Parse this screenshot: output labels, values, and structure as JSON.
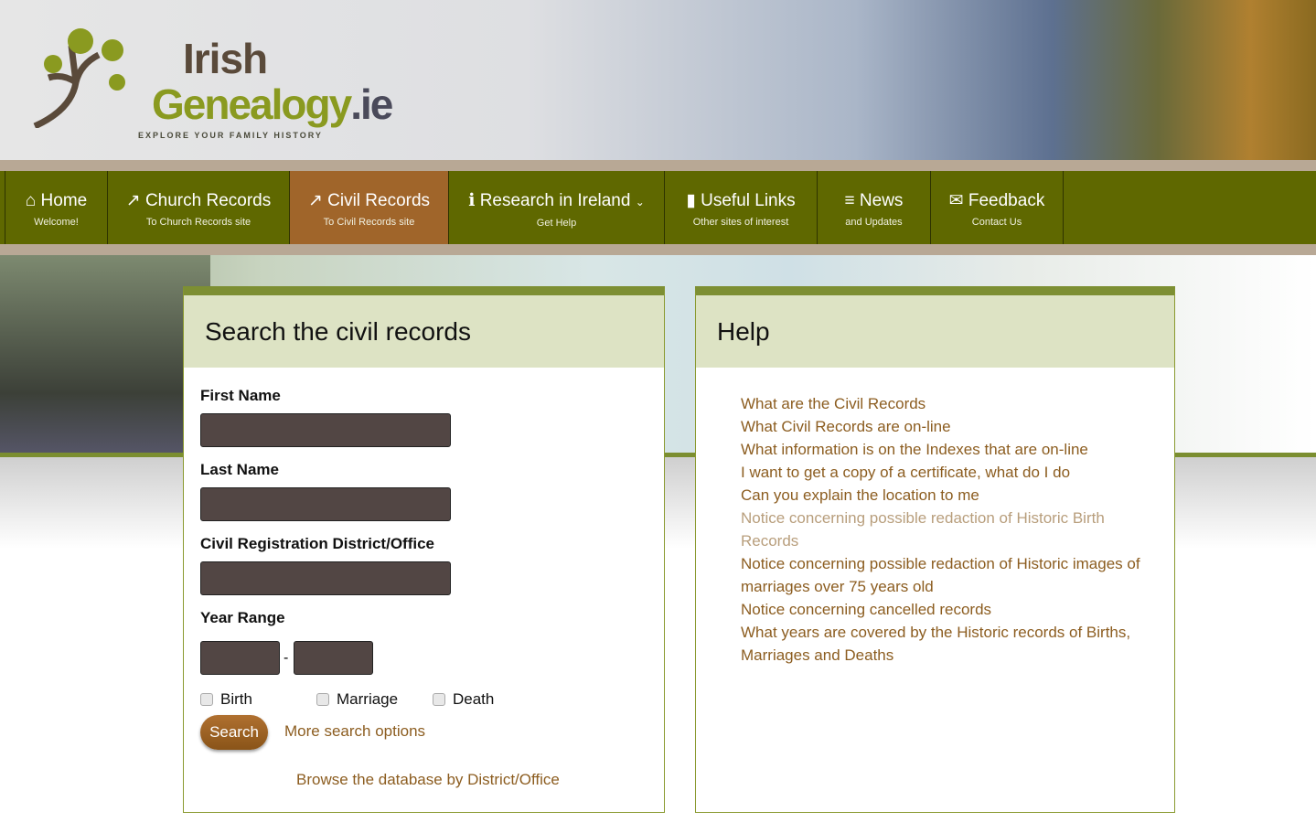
{
  "logo": {
    "word1": "Irish",
    "word2": "Genealogy",
    "tld": ".ie",
    "tagline": "EXPLORE YOUR FAMILY HISTORY"
  },
  "nav": [
    {
      "icon": "home-icon",
      "glyph": "⌂",
      "title": "Home",
      "sub": "Welcome!"
    },
    {
      "icon": "external-link-icon",
      "glyph": "↗",
      "title": "Church Records",
      "sub": "To Church Records site"
    },
    {
      "icon": "external-link-icon",
      "glyph": "↗",
      "title": "Civil Records",
      "sub": "To Civil Records site",
      "active": true
    },
    {
      "icon": "info-icon",
      "glyph": "ℹ",
      "title": "Research in Ireland",
      "sub": "Get Help"
    },
    {
      "icon": "bookmark-icon",
      "glyph": "▮",
      "title": "Useful Links",
      "sub": "Other sites of interest"
    },
    {
      "icon": "list-icon",
      "glyph": "≡",
      "title": "News",
      "sub": "and Updates"
    },
    {
      "icon": "envelope-icon",
      "glyph": "✉",
      "title": "Feedback",
      "sub": "Contact Us"
    }
  ],
  "search": {
    "title": "Search the civil records",
    "first_name": "First Name",
    "last_name": "Last Name",
    "district": "Civil Registration District/Office",
    "year_range": "Year Range",
    "dash": "-",
    "birth": "Birth",
    "marriage": "Marriage",
    "death": "Death",
    "search_button": "Search",
    "more": "More search options",
    "browse": "Browse the database by District/Office"
  },
  "help": {
    "title": "Help",
    "links": [
      "What are the Civil Records",
      "What Civil Records are on-line",
      "What information is on the Indexes that are on-line",
      "I want to get a copy of a certificate, what do I do",
      "Can you explain the location to me",
      "Notice concerning possible redaction of Historic Birth Records",
      "Notice concerning possible redaction of Historic images of marriages over 75 years old",
      "Notice concerning cancelled records",
      "What years are covered by the Historic records of Births, Marriages and Deaths"
    ]
  },
  "colors": {
    "nav": "#5f6800",
    "active": "#a0652a",
    "link": "#8c5d20",
    "panel_header": "#dde3c4"
  }
}
